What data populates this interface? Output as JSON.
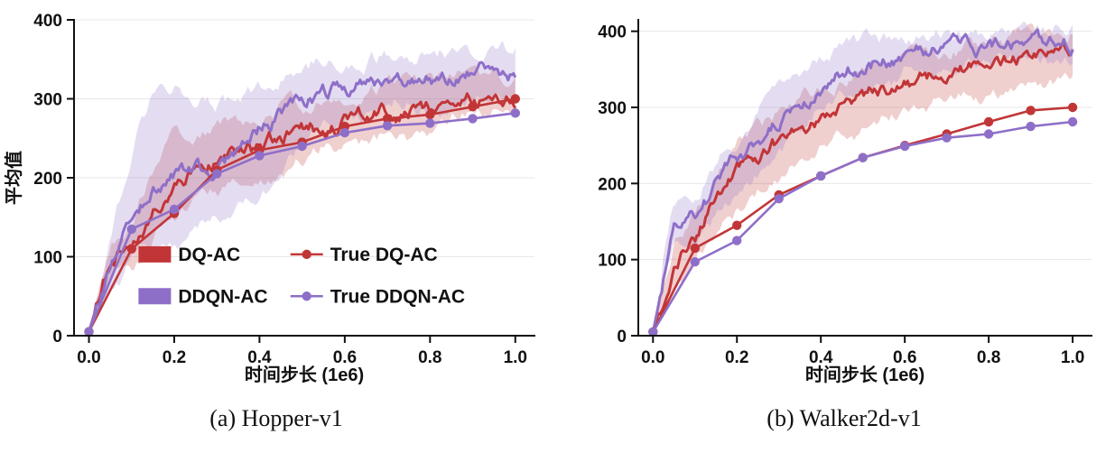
{
  "figure": {
    "background": "#ffffff"
  },
  "colors": {
    "red": "#c23537",
    "purple": "#8e6fc8",
    "band_opacity": 0.24,
    "grid": "#e7e7e7",
    "axis": "#111111"
  },
  "captions": {
    "a": "(a) Hopper-v1",
    "b": "(b) Walker2d-v1"
  },
  "chart_data": [
    {
      "type": "line",
      "title": "(a) Hopper-v1",
      "xlabel": "时间步长 (1e6)",
      "ylabel": "平均值",
      "xlim": [
        0,
        1.0
      ],
      "ylim": [
        0,
        400
      ],
      "xtick_values": [
        0,
        0.2,
        0.4,
        0.6,
        0.8,
        1.0
      ],
      "xtick_labels": [
        "0.0",
        "0.2",
        "0.4",
        "0.6",
        "0.8",
        "1.0"
      ],
      "ytick_values": [
        0,
        100,
        200,
        300,
        400
      ],
      "ytick_labels": [
        "0",
        "100",
        "200",
        "300",
        "400"
      ],
      "grid": "horizontal",
      "show_legend": true,
      "legend_position": "inside lower-center, 2 columns",
      "series": [
        {
          "name": "DQ-AC",
          "type": "band",
          "color": "#c23537",
          "x": [
            0,
            0.05,
            0.1,
            0.15,
            0.2,
            0.25,
            0.3,
            0.35,
            0.4,
            0.45,
            0.5,
            0.55,
            0.6,
            0.65,
            0.7,
            0.75,
            0.8,
            0.85,
            0.9,
            0.95,
            1.0
          ],
          "mean": [
            5,
            95,
            110,
            160,
            200,
            215,
            228,
            238,
            236,
            252,
            262,
            266,
            270,
            279,
            285,
            288,
            291,
            294,
            298,
            301,
            305
          ],
          "lo": [
            5,
            70,
            85,
            120,
            155,
            172,
            185,
            196,
            198,
            212,
            228,
            236,
            245,
            252,
            258,
            262,
            267,
            271,
            277,
            281,
            285
          ],
          "hi": [
            5,
            118,
            138,
            200,
            245,
            255,
            263,
            272,
            272,
            287,
            295,
            300,
            305,
            311,
            315,
            318,
            322,
            325,
            329,
            332,
            336
          ]
        },
        {
          "name": "DDQN-AC",
          "type": "band",
          "color": "#8e6fc8",
          "x": [
            0,
            0.05,
            0.1,
            0.15,
            0.2,
            0.25,
            0.3,
            0.35,
            0.4,
            0.45,
            0.5,
            0.55,
            0.6,
            0.65,
            0.7,
            0.75,
            0.8,
            0.85,
            0.9,
            0.95,
            1.0
          ],
          "mean": [
            5,
            90,
            142,
            190,
            200,
            207,
            213,
            224,
            255,
            282,
            300,
            307,
            312,
            317,
            321,
            324,
            327,
            329,
            331,
            333,
            335
          ],
          "lo": [
            5,
            58,
            95,
            112,
            122,
            131,
            141,
            156,
            182,
            212,
            240,
            255,
            266,
            275,
            282,
            288,
            292,
            295,
            298,
            300,
            302
          ],
          "hi": [
            5,
            125,
            235,
            305,
            312,
            300,
            291,
            296,
            311,
            330,
            344,
            349,
            352,
            354,
            356,
            357,
            358,
            358,
            359,
            360,
            360
          ]
        },
        {
          "name": "True DQ-AC",
          "type": "marker",
          "color": "#c23537",
          "x": [
            0,
            0.1,
            0.2,
            0.3,
            0.4,
            0.5,
            0.6,
            0.7,
            0.8,
            0.9,
            1.0
          ],
          "y": [
            5,
            110,
            155,
            210,
            235,
            245,
            265,
            275,
            280,
            290,
            300
          ]
        },
        {
          "name": "True DDQN-AC",
          "type": "marker",
          "color": "#8e6fc8",
          "x": [
            0,
            0.1,
            0.2,
            0.3,
            0.4,
            0.5,
            0.6,
            0.7,
            0.8,
            0.9,
            1.0
          ],
          "y": [
            5,
            135,
            160,
            205,
            228,
            240,
            257,
            266,
            269,
            275,
            282
          ]
        }
      ]
    },
    {
      "type": "line",
      "title": "(b) Walker2d-v1",
      "xlabel": "时间步长 (1e6)",
      "ylabel": "",
      "xlim": [
        0,
        1.0
      ],
      "ylim": [
        0,
        415
      ],
      "xtick_values": [
        0,
        0.2,
        0.4,
        0.6,
        0.8,
        1.0
      ],
      "xtick_labels": [
        "0.0",
        "0.2",
        "0.4",
        "0.6",
        "0.8",
        "1.0"
      ],
      "ytick_values": [
        0,
        100,
        200,
        300,
        400
      ],
      "ytick_labels": [
        "0",
        "100",
        "200",
        "300",
        "400"
      ],
      "grid": "horizontal",
      "show_legend": false,
      "legend_position": "",
      "series": [
        {
          "name": "DQ-AC",
          "type": "band",
          "color": "#c23537",
          "x": [
            0,
            0.05,
            0.1,
            0.15,
            0.2,
            0.25,
            0.3,
            0.35,
            0.4,
            0.45,
            0.5,
            0.55,
            0.6,
            0.65,
            0.7,
            0.75,
            0.8,
            0.85,
            0.9,
            0.95,
            1.0
          ],
          "mean": [
            5,
            100,
            130,
            175,
            215,
            235,
            252,
            270,
            290,
            301,
            311,
            320,
            330,
            338,
            345,
            350,
            355,
            360,
            364,
            367,
            370
          ],
          "lo": [
            5,
            70,
            95,
            135,
            170,
            190,
            206,
            224,
            244,
            257,
            269,
            281,
            292,
            300,
            308,
            314,
            320,
            325,
            330,
            334,
            338
          ],
          "hi": [
            5,
            126,
            162,
            212,
            252,
            273,
            290,
            308,
            326,
            338,
            348,
            355,
            362,
            368,
            374,
            378,
            383,
            387,
            391,
            395,
            398
          ]
        },
        {
          "name": "DDQN-AC",
          "type": "band",
          "color": "#8e6fc8",
          "x": [
            0,
            0.05,
            0.1,
            0.15,
            0.2,
            0.25,
            0.3,
            0.35,
            0.4,
            0.45,
            0.5,
            0.55,
            0.6,
            0.65,
            0.7,
            0.75,
            0.8,
            0.85,
            0.9,
            0.95,
            1.0
          ],
          "mean": [
            5,
            140,
            155,
            195,
            226,
            255,
            281,
            306,
            330,
            345,
            355,
            362,
            368,
            372,
            375,
            377,
            379,
            380,
            381,
            383,
            385
          ],
          "lo": [
            5,
            110,
            125,
            160,
            186,
            215,
            241,
            266,
            291,
            311,
            323,
            333,
            341,
            347,
            351,
            354,
            357,
            359,
            360,
            362,
            363
          ],
          "hi": [
            5,
            166,
            181,
            226,
            261,
            291,
            316,
            341,
            362,
            375,
            383,
            388,
            392,
            395,
            397,
            399,
            401,
            402,
            403,
            404,
            406
          ]
        },
        {
          "name": "True DQ-AC",
          "type": "marker",
          "color": "#c23537",
          "x": [
            0,
            0.1,
            0.2,
            0.3,
            0.4,
            0.5,
            0.6,
            0.7,
            0.8,
            0.9,
            1.0
          ],
          "y": [
            5,
            115,
            145,
            185,
            210,
            234,
            250,
            265,
            281,
            296,
            300
          ]
        },
        {
          "name": "True DDQN-AC",
          "type": "marker",
          "color": "#8e6fc8",
          "x": [
            0,
            0.1,
            0.2,
            0.3,
            0.4,
            0.5,
            0.6,
            0.7,
            0.8,
            0.9,
            1.0
          ],
          "y": [
            5,
            97,
            125,
            180,
            210,
            234,
            249,
            260,
            265,
            275,
            281
          ]
        }
      ]
    }
  ]
}
